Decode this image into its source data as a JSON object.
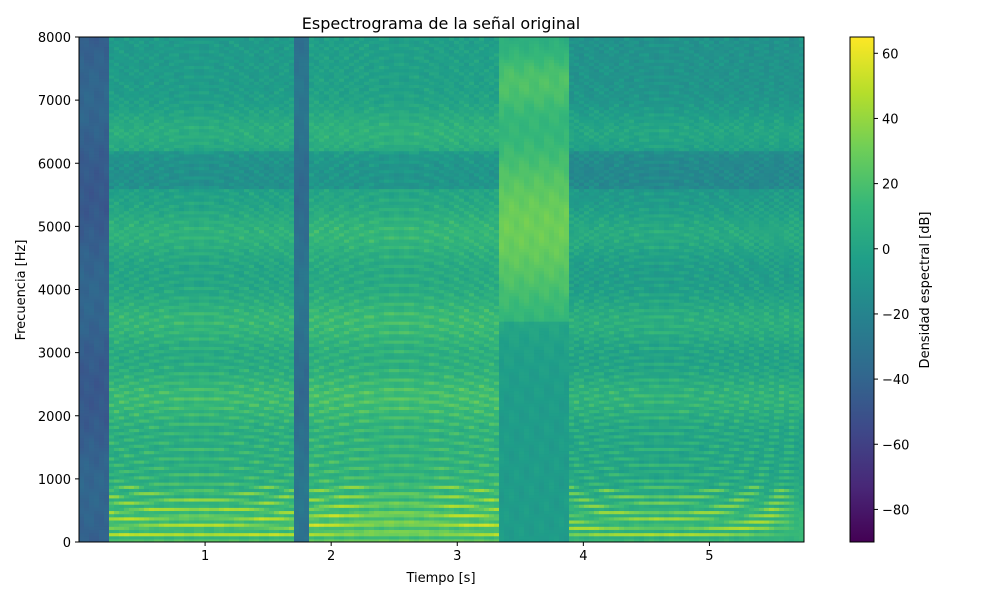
{
  "chart_data": {
    "type": "heatmap",
    "title": "Espectrograma de la señal original",
    "xlabel": "Tiempo [s]",
    "ylabel": "Frecuencia [Hz]",
    "colorbar_label": "Densidad espectral [dB]",
    "colormap": "viridis",
    "xlim": [
      0.0,
      5.75
    ],
    "ylim": [
      0,
      8000
    ],
    "clim": [
      -90,
      65
    ],
    "x_ticks": [
      1,
      2,
      3,
      4,
      5
    ],
    "x_tick_labels": [
      "1",
      "2",
      "3",
      "4",
      "5"
    ],
    "y_ticks": [
      0,
      1000,
      2000,
      3000,
      4000,
      5000,
      6000,
      7000,
      8000
    ],
    "y_tick_labels": [
      "0",
      "1000",
      "2000",
      "3000",
      "4000",
      "5000",
      "6000",
      "7000",
      "8000"
    ],
    "colorbar_ticks": [
      60,
      40,
      20,
      0,
      -20,
      -40,
      -60,
      -80
    ],
    "colorbar_tick_labels": [
      "60",
      "40",
      "20",
      "0",
      "−20",
      "−40",
      "−60",
      "−80"
    ],
    "segments": [
      {
        "t_start": 0.0,
        "t_end": 0.23,
        "kind": "silence",
        "level_db": -35
      },
      {
        "t_start": 0.23,
        "t_end": 1.7,
        "kind": "voiced",
        "f0_hz": 120,
        "level_db": 5
      },
      {
        "t_start": 1.7,
        "t_end": 1.83,
        "kind": "gap",
        "level_db": -25
      },
      {
        "t_start": 1.83,
        "t_end": 3.35,
        "kind": "voiced",
        "f0_hz": 135,
        "level_db": 8
      },
      {
        "t_start": 3.35,
        "t_end": 3.9,
        "kind": "fricative",
        "level_db": 15
      },
      {
        "t_start": 3.9,
        "t_end": 5.75,
        "kind": "voiced",
        "f0_hz": 110,
        "level_db": 0
      }
    ],
    "formant_bands_hz": [
      300,
      2300,
      3500,
      4900,
      6500
    ]
  },
  "colors": {
    "viridis_stops": [
      "#440154",
      "#482878",
      "#3e4989",
      "#31688e",
      "#26828e",
      "#1f9e89",
      "#35b779",
      "#6ece58",
      "#b5de2b",
      "#fde725"
    ]
  }
}
